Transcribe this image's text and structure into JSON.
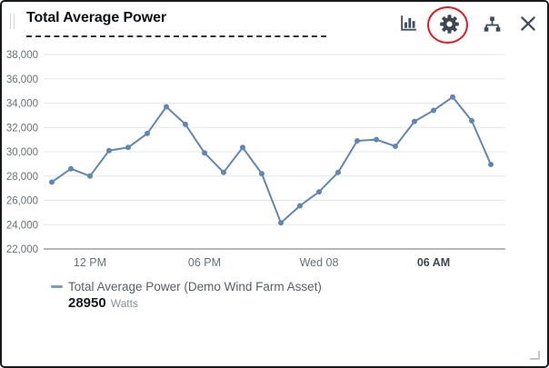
{
  "widget": {
    "title": "Total Average Power"
  },
  "toolbar": {
    "chart_type_icon": "bar-chart-icon",
    "settings_icon": "gear-icon",
    "hierarchy_icon": "asset-tree-icon",
    "close_icon": "close-icon",
    "annotation": "red circle highlighting settings gear"
  },
  "legend": {
    "label": "Total Average Power (Demo Wind Farm Asset)",
    "value": "28950",
    "unit": "Watts"
  },
  "colors": {
    "line": "#6286b2",
    "legend_dash": "#7d9ac4",
    "grid": "#e4e7e9",
    "axis": "#98a0a8",
    "annotation_red": "#e8181f",
    "icon": "#414d5c"
  },
  "chart_data": {
    "type": "line",
    "title": "Total Average Power",
    "xlabel": "",
    "ylabel": "",
    "grid": true,
    "legend_position": "bottom-left",
    "y_axis": {
      "min": 22000,
      "max": 38000,
      "step": 2000
    },
    "y_ticks": [
      {
        "label": "38,000",
        "value": 38000
      },
      {
        "label": "36,000",
        "value": 36000
      },
      {
        "label": "34,000",
        "value": 34000
      },
      {
        "label": "32,000",
        "value": 32000
      },
      {
        "label": "30,000",
        "value": 30000
      },
      {
        "label": "28,000",
        "value": 28000
      },
      {
        "label": "26,000",
        "value": 26000
      },
      {
        "label": "24,000",
        "value": 24000
      },
      {
        "label": "22,000",
        "value": 22000
      }
    ],
    "x_ticks": [
      {
        "label": "12 PM",
        "index": 2,
        "bold": false
      },
      {
        "label": "06 PM",
        "index": 8,
        "bold": false
      },
      {
        "label": "Wed 08",
        "index": 14,
        "bold": false
      },
      {
        "label": "06 AM",
        "index": 20,
        "bold": true
      }
    ],
    "series": [
      {
        "name": "Total Average Power (Demo Wind Farm Asset)",
        "unit": "Watts",
        "latest_value": 28950,
        "color": "#6286b2",
        "values": [
          27500,
          28600,
          28000,
          30100,
          30350,
          31500,
          33700,
          32250,
          29900,
          28300,
          30350,
          28200,
          24150,
          25550,
          26700,
          28300,
          30900,
          31000,
          30450,
          32500,
          33400,
          34500,
          32550,
          28950
        ]
      }
    ]
  }
}
